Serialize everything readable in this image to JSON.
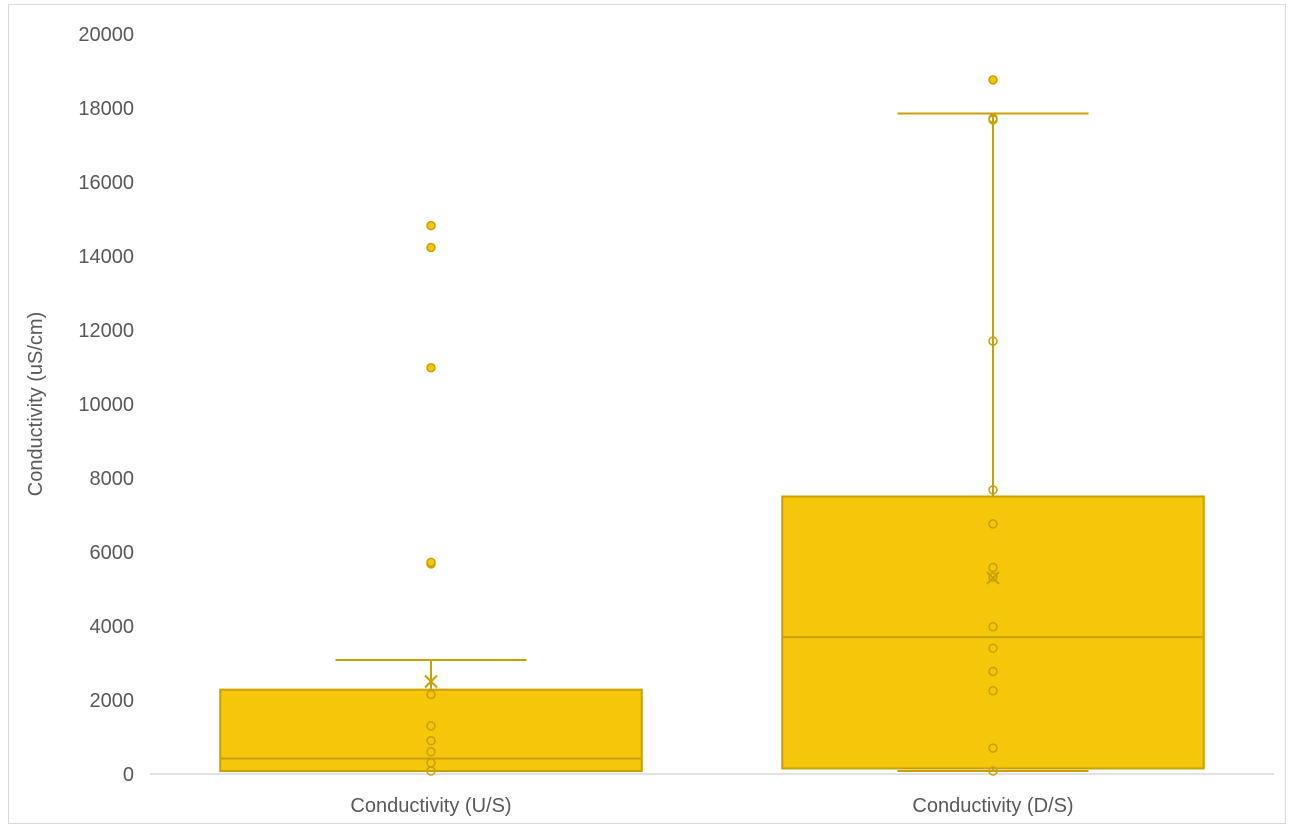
{
  "chart_data": {
    "type": "box",
    "title": "",
    "xlabel": "",
    "ylabel": "Conductivity (uS/cm)",
    "ylim": [
      0,
      20000
    ],
    "yticks": [
      0,
      2000,
      4000,
      6000,
      8000,
      10000,
      12000,
      14000,
      16000,
      18000,
      20000
    ],
    "grid": false,
    "legend": "none",
    "colors": {
      "fill": "#F5C60A",
      "stroke": "#C8A000",
      "axis": "#d9d9d9",
      "text": "#595959"
    },
    "series": [
      {
        "category": "Conductivity (U/S)",
        "min": 80,
        "q1": 80,
        "median": 420,
        "q3": 2280,
        "max": 3080,
        "mean": 2500,
        "inner_points": [
          80,
          300,
          600,
          900,
          1300,
          2150
        ],
        "outliers": [
          5680,
          5720,
          10980,
          14230,
          14820
        ]
      },
      {
        "category": "Conductivity (D/S)",
        "min": 80,
        "q1": 150,
        "median": 3700,
        "q3": 7500,
        "max": 17850,
        "mean": 5300,
        "inner_points": [
          80,
          700,
          2250,
          2770,
          3400,
          3980,
          5320,
          5580,
          6760,
          7680,
          11700,
          17680,
          17720
        ],
        "outliers": [
          18760
        ]
      }
    ]
  }
}
